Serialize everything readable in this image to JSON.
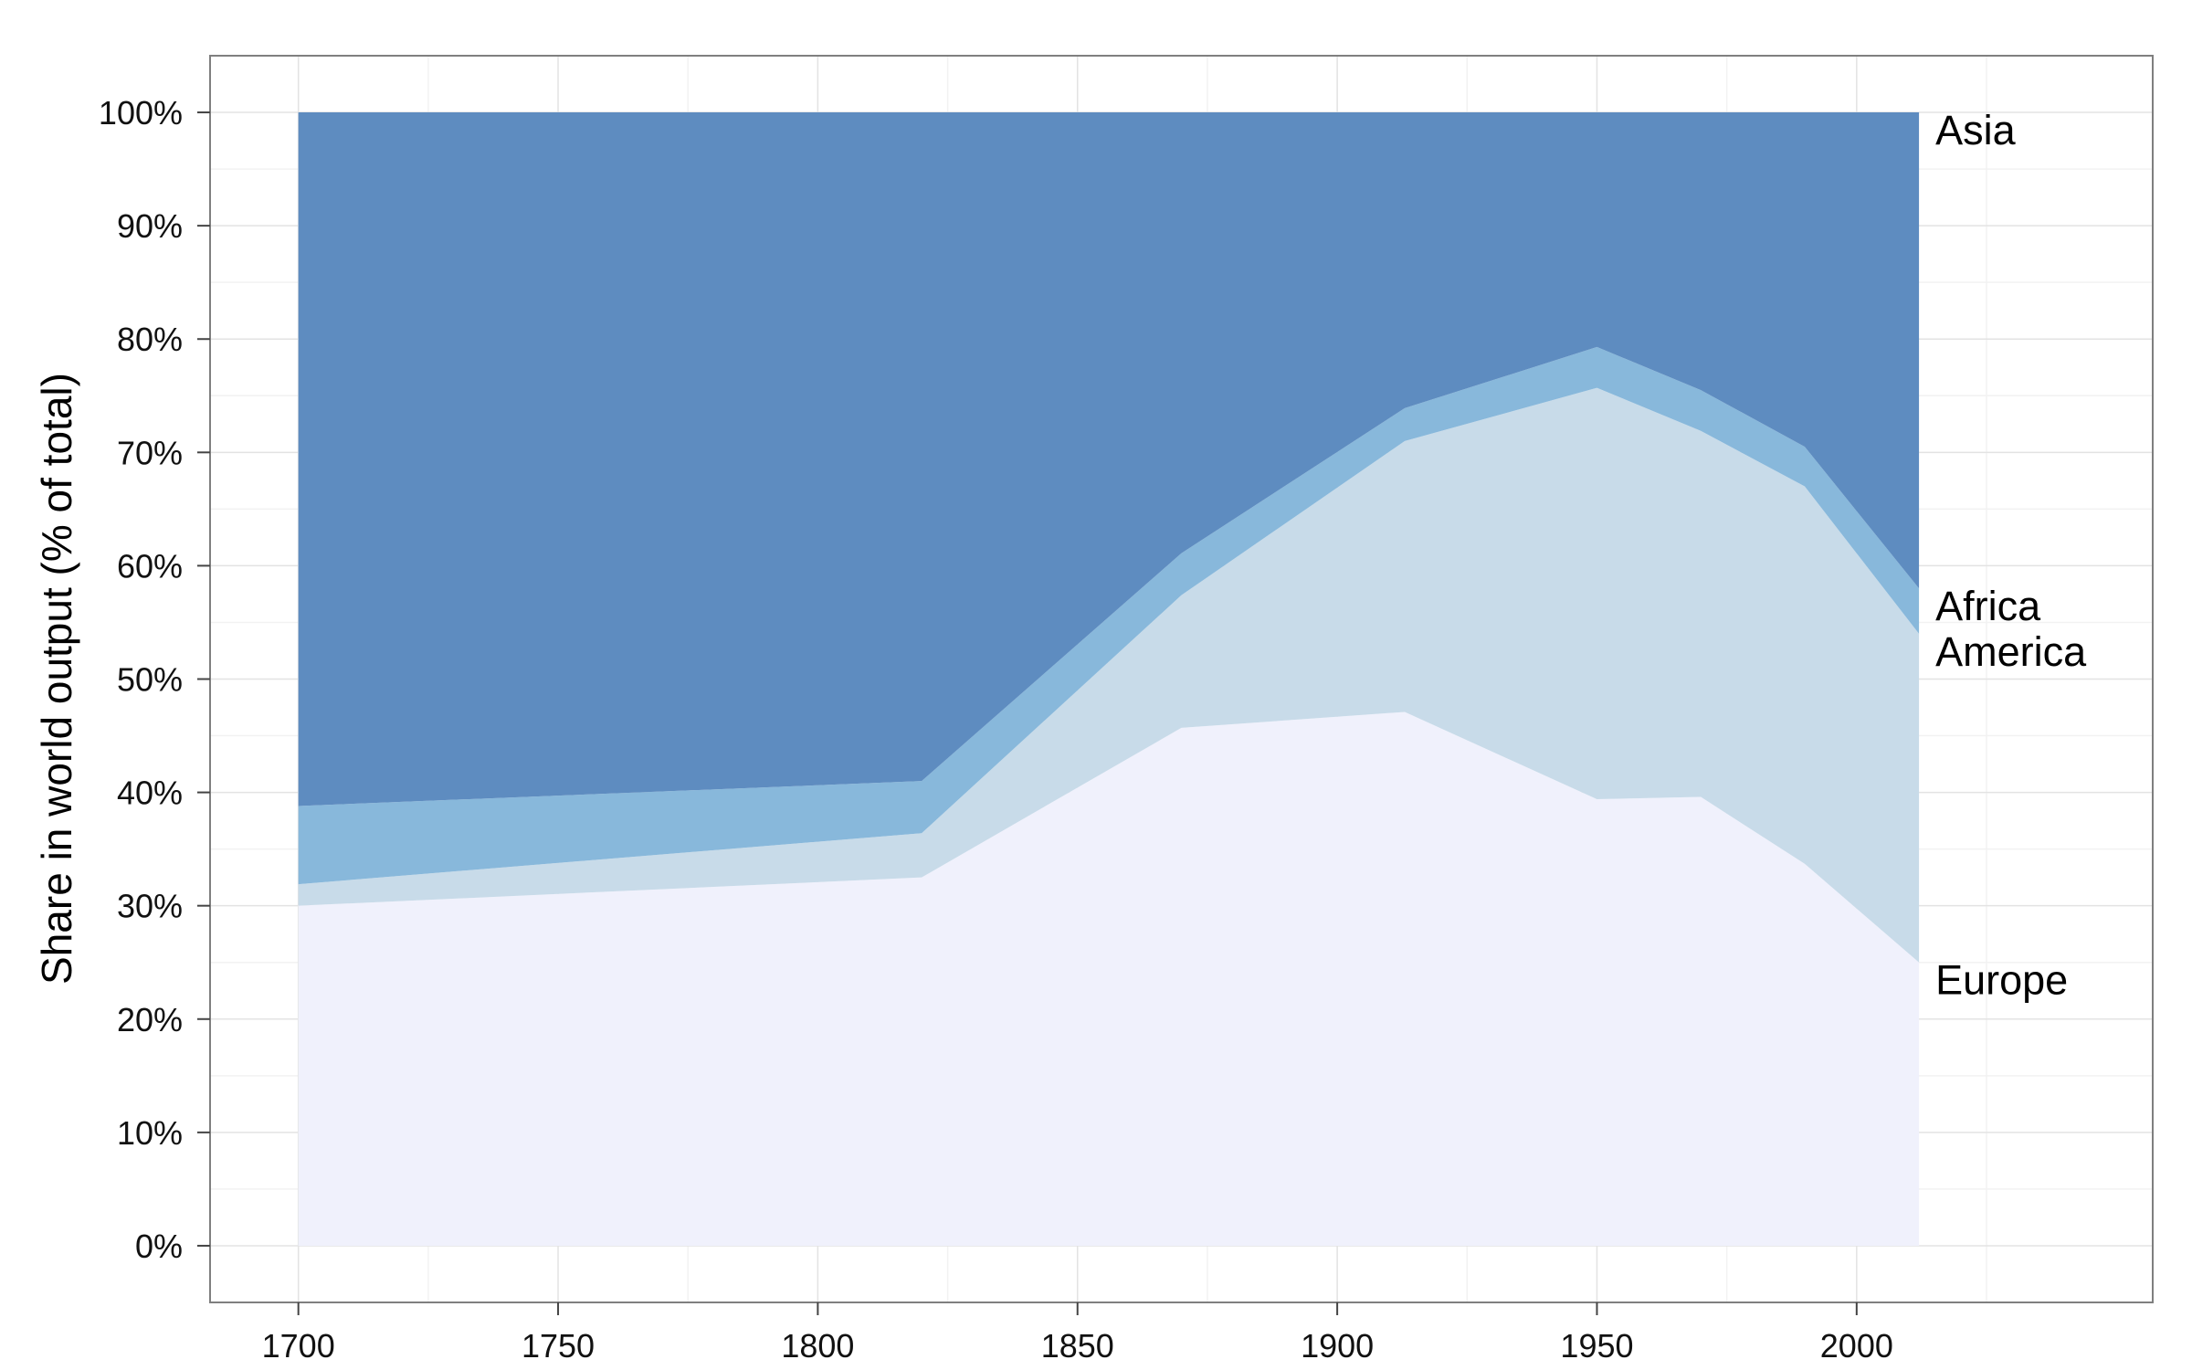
{
  "chart_data": {
    "type": "area",
    "stacked": true,
    "x": [
      1700,
      1820,
      1870,
      1913,
      1950,
      1970,
      1990,
      2012
    ],
    "series": [
      {
        "name": "Europe",
        "values": [
          30.0,
          32.5,
          45.7,
          47.1,
          39.4,
          39.6,
          33.7,
          25.0
        ],
        "color": "#f0f1fc"
      },
      {
        "name": "America",
        "values": [
          1.9,
          3.9,
          11.7,
          23.9,
          36.3,
          32.3,
          33.3,
          29.0
        ],
        "color": "#c8dbe9"
      },
      {
        "name": "Africa",
        "values": [
          6.9,
          4.6,
          3.7,
          2.9,
          3.6,
          3.6,
          3.5,
          4.0
        ],
        "color": "#88b8db"
      },
      {
        "name": "Asia",
        "values": [
          61.2,
          59.0,
          38.9,
          26.1,
          20.7,
          24.5,
          29.5,
          42.0
        ],
        "color": "#5e8cc0"
      }
    ],
    "xlabel": "",
    "ylabel": "Share in world output (% of total)",
    "xlim": [
      1683,
      2057
    ],
    "ylim": [
      -5,
      105
    ],
    "x_ticks": [
      "1700",
      "1750",
      "1800",
      "1850",
      "1900",
      "1950",
      "2000"
    ],
    "y_ticks": [
      "0%",
      "10%",
      "20%",
      "30%",
      "40%",
      "50%",
      "60%",
      "70%",
      "80%",
      "90%",
      "100%"
    ],
    "grid": true,
    "legend": "direct labels at right end"
  }
}
